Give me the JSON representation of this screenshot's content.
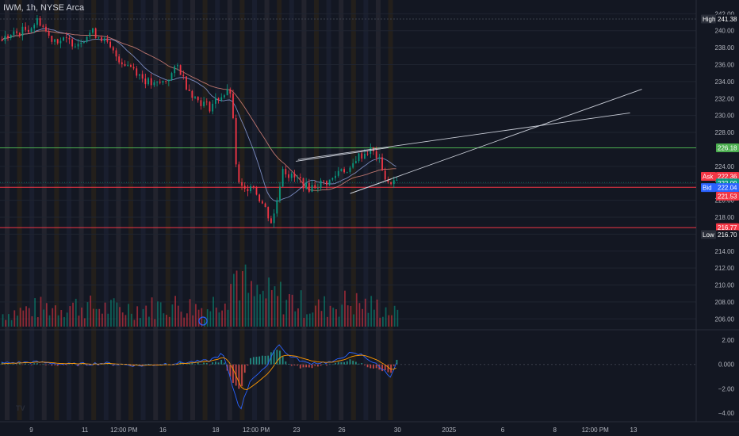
{
  "header": {
    "symbol_line": "IWM, 1h, NYSE Arca"
  },
  "price_axis": {
    "min": 205,
    "max": 242.5,
    "ticks": [
      242,
      240,
      238,
      236,
      234,
      232,
      230,
      228,
      224,
      222,
      220,
      218,
      216,
      214,
      212,
      210,
      208,
      206
    ],
    "tick_labels": [
      "242.00",
      "240.00",
      "238.00",
      "236.00",
      "234.00",
      "232.00",
      "230.00",
      "228.00",
      "224.00",
      "222.00",
      "220.00",
      "218.00",
      "216.00",
      "214.00",
      "212.00",
      "210.00",
      "208.00",
      "206.00"
    ]
  },
  "levels": {
    "high": {
      "tag": "High",
      "value": 241.38,
      "label": "241.38"
    },
    "resistance": {
      "value": 226.18,
      "label": "226.18",
      "color": "#4caf50"
    },
    "ask": {
      "tag": "Ask",
      "value": 222.36,
      "label": "222.36",
      "color": "#f23645"
    },
    "last": {
      "value": 222.09,
      "label": "222.09",
      "color": "#089981"
    },
    "bid": {
      "tag": "Bid",
      "value": 222.04,
      "label": "222.04",
      "color": "#2962ff"
    },
    "prev": {
      "value": 221.53,
      "label": "221.53",
      "color": "#f23645"
    },
    "support": {
      "value": 216.77,
      "label": "216.77",
      "color": "#f23645"
    },
    "low": {
      "tag": "Low",
      "value": 216.7,
      "label": "216.70"
    }
  },
  "indicator_axis": {
    "min": -4.6,
    "max": 2.6,
    "ticks": [
      2,
      0,
      -2,
      -4
    ],
    "tick_labels": [
      "2.00",
      "0.000",
      "−2.00",
      "−4.00"
    ]
  },
  "time_axis": {
    "labels": [
      {
        "t": 0.045,
        "text": "9"
      },
      {
        "t": 0.122,
        "text": "11"
      },
      {
        "t": 0.178,
        "text": "12:00 PM"
      },
      {
        "t": 0.234,
        "text": "16"
      },
      {
        "t": 0.31,
        "text": "18"
      },
      {
        "t": 0.368,
        "text": "12:00 PM"
      },
      {
        "t": 0.426,
        "text": "23"
      },
      {
        "t": 0.491,
        "text": "26"
      },
      {
        "t": 0.571,
        "text": "30"
      },
      {
        "t": 0.645,
        "text": "2025"
      },
      {
        "t": 0.722,
        "text": "6"
      },
      {
        "t": 0.797,
        "text": "8"
      },
      {
        "t": 0.855,
        "text": "12:00 PM"
      },
      {
        "t": 0.91,
        "text": "13"
      }
    ]
  },
  "colors": {
    "up": "#089981",
    "down": "#f23645",
    "ma1": "#8c9dd8",
    "ma2": "#d9857a",
    "bg": "#131722"
  },
  "logo": {
    "text": "TV"
  },
  "chart_data": {
    "type": "candlestick",
    "symbol": "IWM",
    "interval": "1h",
    "exchange": "NYSE Arca",
    "ylim": [
      205,
      242.5
    ],
    "close_path": [
      [
        0,
        239.0
      ],
      [
        0.02,
        239.6
      ],
      [
        0.04,
        240.3
      ],
      [
        0.055,
        241.3
      ],
      [
        0.07,
        239.2
      ],
      [
        0.09,
        238.8
      ],
      [
        0.11,
        238.6
      ],
      [
        0.13,
        239.9
      ],
      [
        0.145,
        239.2
      ],
      [
        0.16,
        237.5
      ],
      [
        0.175,
        236.3
      ],
      [
        0.19,
        235.7
      ],
      [
        0.205,
        234.3
      ],
      [
        0.22,
        233.5
      ],
      [
        0.235,
        234.0
      ],
      [
        0.245,
        234.8
      ],
      [
        0.255,
        235.9
      ],
      [
        0.265,
        233.8
      ],
      [
        0.28,
        232.0
      ],
      [
        0.3,
        231.0
      ],
      [
        0.315,
        232.3
      ],
      [
        0.33,
        232.8
      ],
      [
        0.335,
        228.0
      ],
      [
        0.34,
        222.0
      ],
      [
        0.35,
        221.0
      ],
      [
        0.36,
        222.2
      ],
      [
        0.37,
        220.5
      ],
      [
        0.38,
        219.0
      ],
      [
        0.39,
        217.2
      ],
      [
        0.4,
        221.5
      ],
      [
        0.405,
        224.0
      ],
      [
        0.415,
        222.8
      ],
      [
        0.43,
        222.4
      ],
      [
        0.44,
        221.4
      ],
      [
        0.46,
        222.0
      ],
      [
        0.475,
        222.3
      ],
      [
        0.49,
        224.0
      ],
      [
        0.5,
        223.0
      ],
      [
        0.51,
        225.0
      ],
      [
        0.52,
        225.4
      ],
      [
        0.53,
        226.0
      ],
      [
        0.54,
        225.2
      ],
      [
        0.55,
        223.5
      ],
      [
        0.555,
        221.5
      ],
      [
        0.56,
        222.3
      ],
      [
        0.57,
        222.1
      ]
    ],
    "volume_path": [
      [
        0,
        0.2
      ],
      [
        0.05,
        0.3
      ],
      [
        0.1,
        0.35
      ],
      [
        0.15,
        0.3
      ],
      [
        0.2,
        0.3
      ],
      [
        0.25,
        0.35
      ],
      [
        0.3,
        0.3
      ],
      [
        0.34,
        0.9
      ],
      [
        0.36,
        0.5
      ],
      [
        0.4,
        0.5
      ],
      [
        0.45,
        0.3
      ],
      [
        0.5,
        0.4
      ],
      [
        0.55,
        0.3
      ],
      [
        0.57,
        0.2
      ]
    ],
    "macd_path": [
      [
        0,
        0.1
      ],
      [
        0.05,
        0.2
      ],
      [
        0.1,
        0.0
      ],
      [
        0.15,
        0.1
      ],
      [
        0.2,
        -0.1
      ],
      [
        0.25,
        0.1
      ],
      [
        0.3,
        0.3
      ],
      [
        0.32,
        0.9
      ],
      [
        0.335,
        -2.0
      ],
      [
        0.345,
        -3.8
      ],
      [
        0.36,
        -1.2
      ],
      [
        0.38,
        -0.4
      ],
      [
        0.4,
        1.8
      ],
      [
        0.41,
        0.9
      ],
      [
        0.44,
        0.1
      ],
      [
        0.48,
        0.2
      ],
      [
        0.5,
        0.9
      ],
      [
        0.52,
        0.8
      ],
      [
        0.55,
        -0.4
      ],
      [
        0.56,
        -1.0
      ],
      [
        0.57,
        0.1
      ]
    ]
  }
}
